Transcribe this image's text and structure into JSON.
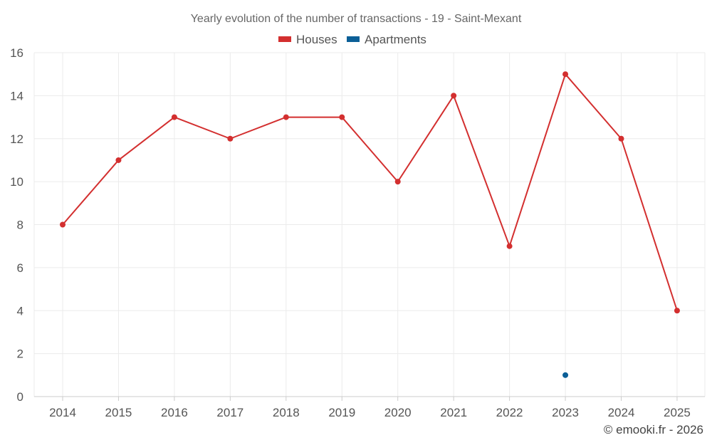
{
  "chart_data": {
    "type": "line",
    "title": "Yearly evolution of the number of transactions - 19 - Saint-Mexant",
    "xlabel": "",
    "ylabel": "",
    "categories": [
      "2014",
      "2015",
      "2016",
      "2017",
      "2018",
      "2019",
      "2020",
      "2021",
      "2022",
      "2023",
      "2024",
      "2025"
    ],
    "ylim": [
      0,
      16
    ],
    "yticks": [
      0,
      2,
      4,
      6,
      8,
      10,
      12,
      14,
      16
    ],
    "grid": true,
    "legend_position": "top-center",
    "series": [
      {
        "name": "Houses",
        "color": "#d32f2f",
        "values": [
          8,
          11,
          13,
          12,
          13,
          13,
          10,
          14,
          7,
          15,
          12,
          4
        ]
      },
      {
        "name": "Apartments",
        "color": "#0b5f97",
        "values": [
          null,
          null,
          null,
          null,
          null,
          null,
          null,
          null,
          null,
          1,
          null,
          null
        ]
      }
    ]
  },
  "credit": "© emooki.fr - 2026"
}
